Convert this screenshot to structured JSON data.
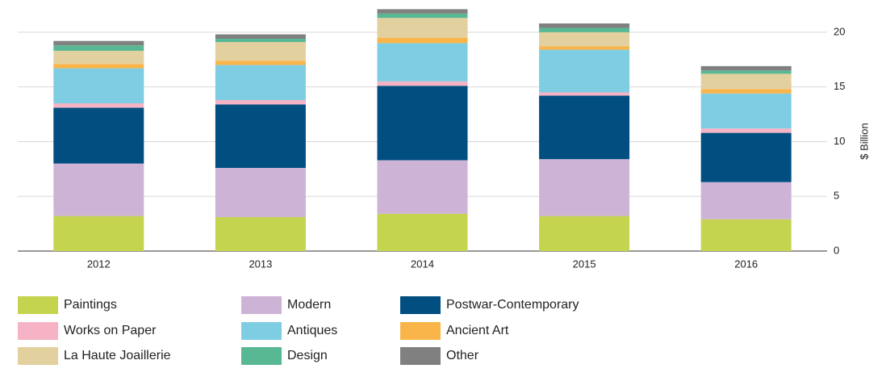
{
  "chart_data": {
    "type": "stacked_bar",
    "categories": [
      "2012",
      "2013",
      "2014",
      "2015",
      "2016"
    ],
    "y_axis_label": "$ Billion",
    "ylim": [
      0,
      22.5
    ],
    "yticks": [
      0,
      5,
      10,
      15,
      20
    ],
    "grid": true,
    "y_axis_side": "right",
    "legend": "bottom",
    "series": [
      {
        "name": "Paintings",
        "color": "#c5d44e",
        "values": [
          3.2,
          3.1,
          3.4,
          3.2,
          2.9
        ]
      },
      {
        "name": "Modern",
        "color": "#cdb4d6",
        "values": [
          4.8,
          4.5,
          4.9,
          5.2,
          3.4
        ]
      },
      {
        "name": "Postwar-Contemporary",
        "color": "#004f80",
        "values": [
          5.1,
          5.8,
          6.8,
          5.8,
          4.5
        ]
      },
      {
        "name": "Works on Paper",
        "color": "#f5b3c5",
        "values": [
          0.4,
          0.4,
          0.4,
          0.3,
          0.4
        ]
      },
      {
        "name": "Antiques",
        "color": "#7ecde3",
        "values": [
          3.2,
          3.2,
          3.5,
          3.9,
          3.2
        ]
      },
      {
        "name": "Ancient Art",
        "color": "#f9b54a",
        "values": [
          0.4,
          0.4,
          0.5,
          0.3,
          0.4
        ]
      },
      {
        "name": "La Haute Joaillerie",
        "color": "#e3d09f",
        "values": [
          1.2,
          1.7,
          1.8,
          1.3,
          1.4
        ]
      },
      {
        "name": "Design",
        "color": "#58b894",
        "values": [
          0.5,
          0.3,
          0.4,
          0.4,
          0.3
        ]
      },
      {
        "name": "Other",
        "color": "#808080",
        "values": [
          0.4,
          0.4,
          0.4,
          0.4,
          0.4
        ]
      }
    ]
  }
}
